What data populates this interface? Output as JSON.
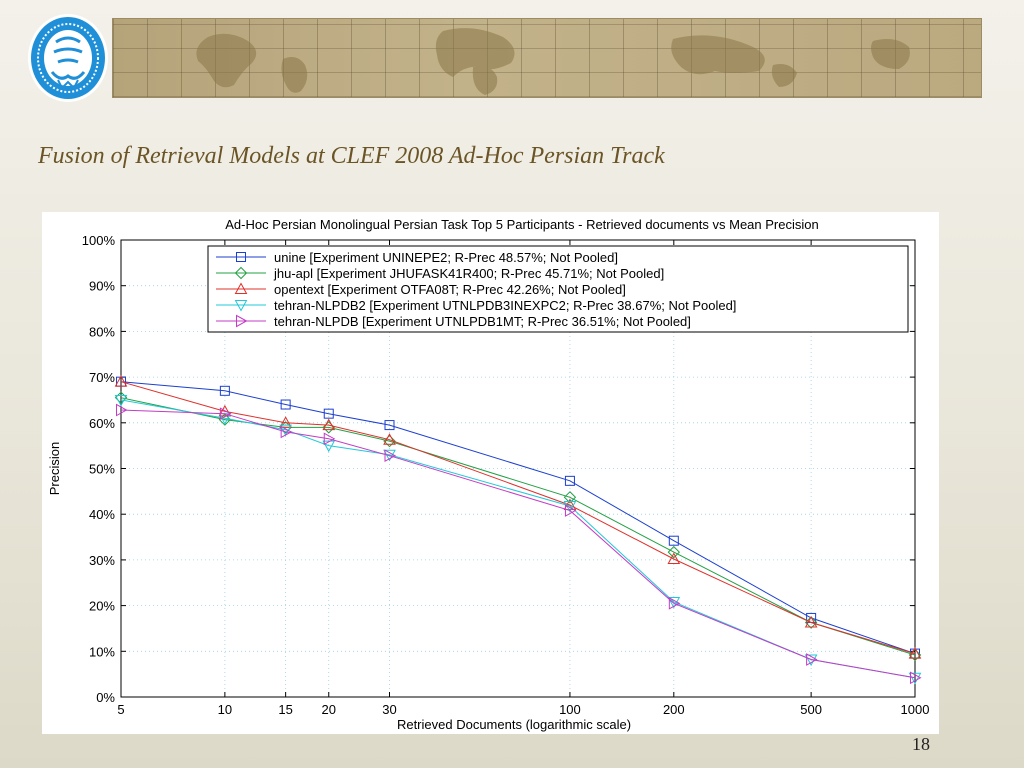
{
  "slide": {
    "title": "Fusion of Retrieval Models at CLEF 2008 Ad-Hoc Persian Track",
    "page_number": "18",
    "title_color": "#6b5526"
  },
  "logo": {
    "icon": "university-of-tehran-seal-icon",
    "color": "#1f8fd8"
  },
  "chart_data": {
    "type": "line",
    "title": "Ad-Hoc Persian Monolingual Persian Task Top 5 Participants - Retrieved documents vs Mean Precision",
    "xlabel": "Retrieved Documents (logarithmic scale)",
    "ylabel": "Precision",
    "x_scale": "log",
    "x": [
      5,
      10,
      15,
      20,
      30,
      100,
      200,
      500,
      1000
    ],
    "x_tick_labels": [
      "5",
      "10",
      "15",
      "20",
      "30",
      "100",
      "200",
      "500",
      "1000"
    ],
    "y_tick_labels": [
      "0%",
      "10%",
      "20%",
      "30%",
      "40%",
      "50%",
      "60%",
      "70%",
      "80%",
      "90%",
      "100%"
    ],
    "xlim": [
      5,
      1000
    ],
    "ylim": [
      0,
      1
    ],
    "grid": true,
    "legend_position": "top-right",
    "series": [
      {
        "name": "unine [Experiment UNINEPE2; R-Prec 48.57%; Not Pooled]",
        "color": "#1c3fd0",
        "marker": "square",
        "values": [
          0.69,
          0.67,
          0.64,
          0.62,
          0.595,
          0.473,
          0.342,
          0.173,
          0.095
        ]
      },
      {
        "name": "jhu-apl [Experiment JHUFASK41R400; R-Prec 45.71%; Not Pooled]",
        "color": "#22a043",
        "marker": "diamond",
        "values": [
          0.655,
          0.607,
          0.59,
          0.59,
          0.56,
          0.437,
          0.317,
          0.163,
          0.092
        ]
      },
      {
        "name": "opentext [Experiment OTFA08T; R-Prec 42.26%; Not Pooled]",
        "color": "#e0302a",
        "marker": "triangle-up",
        "values": [
          0.69,
          0.625,
          0.6,
          0.595,
          0.563,
          0.42,
          0.302,
          0.163,
          0.095
        ]
      },
      {
        "name": "tehran-NLPDB2 [Experiment UTNLPDB3INEXPC2; R-Prec 38.67%; Not Pooled]",
        "color": "#22c8d8",
        "marker": "triangle-down",
        "values": [
          0.65,
          0.61,
          0.585,
          0.55,
          0.53,
          0.418,
          0.208,
          0.082,
          0.042
        ]
      },
      {
        "name": "tehran-NLPDB [Experiment UTNLPDB1MT; R-Prec 36.51%; Not Pooled]",
        "color": "#c33cc6",
        "marker": "triangle-right",
        "values": [
          0.628,
          0.62,
          0.58,
          0.565,
          0.528,
          0.408,
          0.205,
          0.082,
          0.042
        ]
      }
    ]
  }
}
